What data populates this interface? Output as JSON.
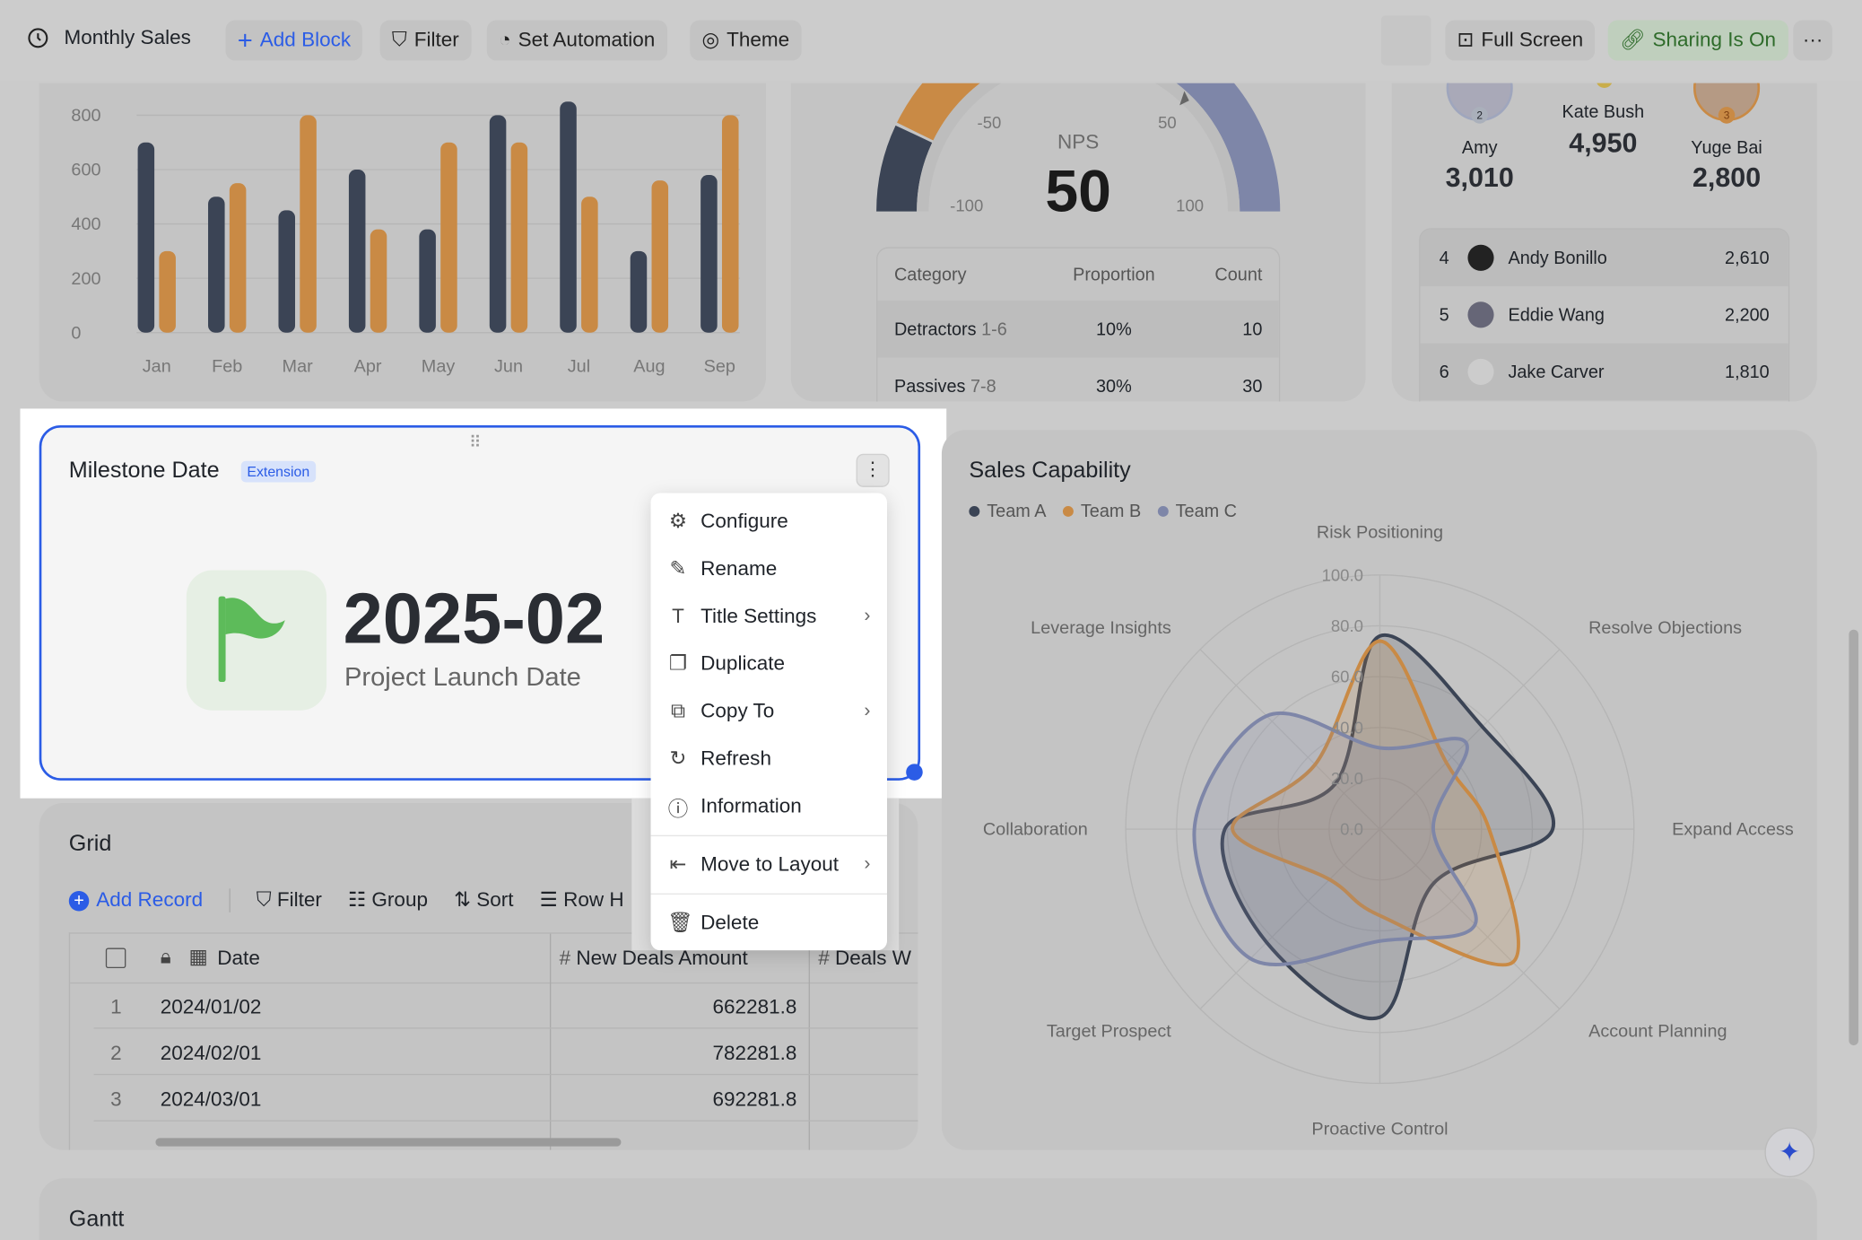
{
  "toolbar": {
    "title": "Monthly Sales",
    "add_block": "Add Block",
    "filter": "Filter",
    "set_automation": "Set Automation",
    "theme": "Theme",
    "full_screen": "Full Screen",
    "sharing": "Sharing Is On",
    "more": "···"
  },
  "colors": {
    "accent": "#2b5ce6",
    "team_a": "#3b4455",
    "team_b": "#c98a45",
    "team_c": "#7e86a8",
    "sharing_bg": "#bfcfbd",
    "sharing_text": "#2e6b2a"
  },
  "bar_chart": {
    "chart_data": {
      "type": "bar",
      "categories": [
        "Jan",
        "Feb",
        "Mar",
        "Apr",
        "May",
        "Jun",
        "Jul",
        "Aug",
        "Sep"
      ],
      "yticks": [
        "0",
        "200",
        "400",
        "600",
        "800"
      ],
      "ylim": [
        0,
        800
      ],
      "grid": true,
      "series": [
        {
          "color": "#3b4455",
          "values": [
            700,
            500,
            450,
            600,
            380,
            800,
            850,
            300,
            580
          ]
        },
        {
          "color": "#c98a45",
          "values": [
            300,
            550,
            800,
            380,
            700,
            700,
            500,
            560,
            800
          ]
        }
      ]
    }
  },
  "nps": {
    "label": "NPS",
    "value": "50",
    "ticks": [
      "-100",
      "-50",
      "50",
      "100"
    ],
    "pointer": 50,
    "table": {
      "headers": [
        "Category",
        "Proportion",
        "Count"
      ],
      "rows": [
        {
          "category": "Detractors",
          "range": "1-6",
          "proportion": "10%",
          "count": "10"
        },
        {
          "category": "Passives",
          "range": "7-8",
          "proportion": "30%",
          "count": "30"
        }
      ]
    }
  },
  "leaderboard": {
    "podium": [
      {
        "name": "Amy",
        "score": "3,010",
        "rank": "2"
      },
      {
        "name": "Kate Bush",
        "score": "4,950",
        "rank": "1"
      },
      {
        "name": "Yuge Bai",
        "score": "2,800",
        "rank": "3"
      }
    ],
    "rows": [
      {
        "rank": "4",
        "name": "Andy Bonillo",
        "score": "2,610"
      },
      {
        "rank": "5",
        "name": "Eddie Wang",
        "score": "2,200"
      },
      {
        "rank": "6",
        "name": "Jake Carver",
        "score": "1,810"
      }
    ]
  },
  "milestone": {
    "title": "Milestone Date",
    "badge": "Extension",
    "date": "2025-02",
    "caption": "Project Launch Date"
  },
  "menu": {
    "items": [
      {
        "label": "Configure",
        "icon": "gear-icon"
      },
      {
        "label": "Rename",
        "icon": "edit-icon"
      },
      {
        "label": "Title Settings",
        "icon": "text-icon",
        "submenu": true
      },
      {
        "label": "Duplicate",
        "icon": "duplicate-icon"
      },
      {
        "label": "Copy To",
        "icon": "copy-to-icon",
        "submenu": true
      },
      {
        "label": "Refresh",
        "icon": "refresh-icon"
      },
      {
        "label": "Information",
        "icon": "info-icon"
      },
      {
        "label": "Move to Layout",
        "icon": "move-icon",
        "submenu": true
      },
      {
        "label": "Delete",
        "icon": "trash-icon"
      }
    ]
  },
  "grid": {
    "title": "Grid",
    "add_record": "Add Record",
    "filter": "Filter",
    "group": "Group",
    "sort": "Sort",
    "row_height": "Row H",
    "columns": [
      "Date",
      "New Deals Amount",
      "Deals W"
    ],
    "rows": [
      {
        "n": "1",
        "date": "2024/01/02",
        "amount": "662281.8"
      },
      {
        "n": "2",
        "date": "2024/02/01",
        "amount": "782281.8"
      },
      {
        "n": "3",
        "date": "2024/03/01",
        "amount": "692281.8"
      }
    ]
  },
  "radar": {
    "chart_data": {
      "type": "radar",
      "title": "Sales Capability",
      "axes": [
        "Risk Positioning",
        "Resolve Objections",
        "Expand Access",
        "Account Planning",
        "Proactive Control",
        "Target Prospect",
        "Collaboration",
        "Leverage Insights"
      ],
      "ticks": [
        "0.0",
        "20.0",
        "40.0",
        "60.0",
        "80.0",
        "100.0"
      ],
      "range": [
        0,
        100
      ],
      "legend": "top-left",
      "series": [
        {
          "name": "Team A",
          "color": "#3b4455",
          "values": [
            76,
            57,
            68,
            30,
            74,
            63,
            61,
            25
          ]
        },
        {
          "name": "Team B",
          "color": "#c98a45",
          "values": [
            74,
            37,
            43,
            74,
            34,
            28,
            58,
            36
          ]
        },
        {
          "name": "Team C",
          "color": "#7e86a8",
          "values": [
            32,
            48,
            21,
            53,
            44,
            72,
            73,
            63
          ]
        }
      ]
    }
  },
  "gantt": {
    "title": "Gantt"
  }
}
